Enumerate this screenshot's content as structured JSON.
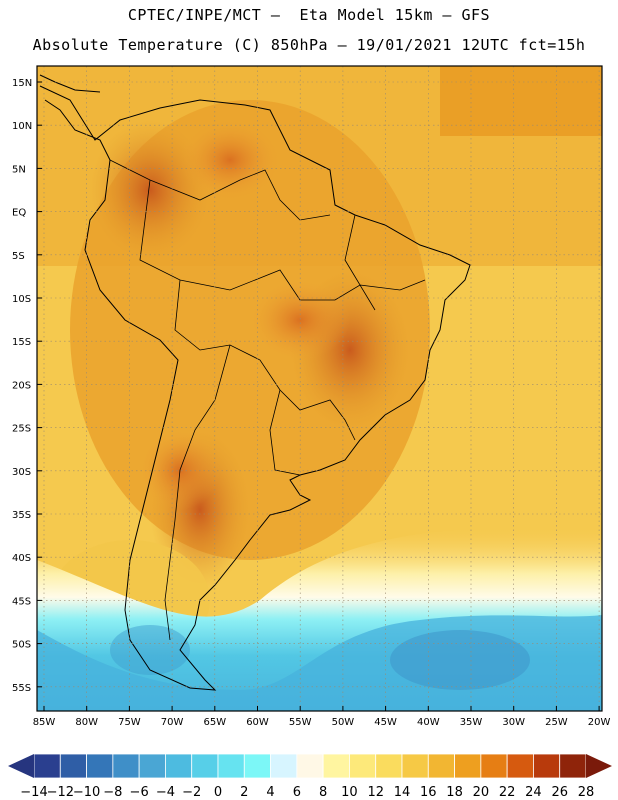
{
  "header": {
    "line1": "CPTEC/INPE/MCT –  Eta Model 15km – GFS",
    "line2": "Absolute Temperature (C) 850hPa – 19/01/2021 12UTC fct=15h"
  },
  "map": {
    "lat_ticks": [
      "15N",
      "10N",
      "5N",
      "EQ",
      "5S",
      "10S",
      "15S",
      "20S",
      "25S",
      "30S",
      "35S",
      "40S",
      "45S",
      "50S",
      "55S"
    ],
    "lon_ticks": [
      "85W",
      "80W",
      "75W",
      "70W",
      "65W",
      "60W",
      "55W",
      "50W",
      "45W",
      "40W",
      "35W",
      "30W",
      "25W",
      "20W"
    ]
  },
  "colorbar": {
    "labels": [
      "-14",
      "-12",
      "-10",
      "-8",
      "-6",
      "-4",
      "-2",
      "0",
      "2",
      "4",
      "6",
      "8",
      "10",
      "12",
      "14",
      "16",
      "18",
      "20",
      "22",
      "24",
      "26",
      "28"
    ],
    "colors": [
      "#2a3f8f",
      "#2f5ea6",
      "#3476b8",
      "#3f8fc8",
      "#4aa6d4",
      "#4dbbe0",
      "#57cfe8",
      "#66e3f0",
      "#7cf7f7",
      "#d7f5ff",
      "#fff8e6",
      "#fff5a0",
      "#fde97a",
      "#fadc5e",
      "#f6c945",
      "#f2b632",
      "#ee9f1f",
      "#e67e14",
      "#d65a0f",
      "#b83a0c",
      "#8f240a"
    ]
  }
}
